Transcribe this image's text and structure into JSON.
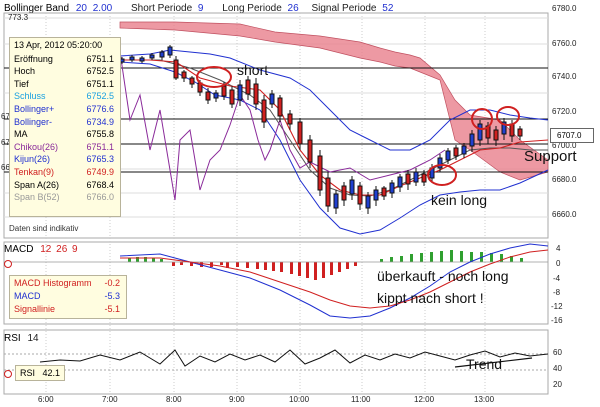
{
  "main_panel": {
    "header": {
      "bb_label": "Bollinger Band",
      "bb_period": "20",
      "bb_dev": "2.00",
      "short_label": "Short Periode",
      "short_val": "9",
      "long_label": "Long Periode",
      "long_val": "26",
      "signal_label": "Signal Periode",
      "signal_val": "52"
    },
    "y_ticks": [
      "6780.0",
      "6760.0",
      "6740.0",
      "6720.0",
      "6700.0",
      "6680.0",
      "6660.0"
    ],
    "left_ticks": [
      "773.3",
      "67",
      "67",
      "66"
    ],
    "price_badge": "6707.0",
    "footer_note": "Daten sind indikativ",
    "tooltip": {
      "datetime": "13 Apr, 2012 05:20:00",
      "rows": [
        {
          "label": "Eröffnung",
          "value": "6751.1",
          "color": "#000000"
        },
        {
          "label": "Hoch",
          "value": "6752.5",
          "color": "#000000"
        },
        {
          "label": "Tief",
          "value": "6751.1",
          "color": "#000000"
        },
        {
          "label": "Schluss",
          "value": "6752.5",
          "color": "#1aa0e0"
        },
        {
          "label": "Bollinger+",
          "value": "6776.6",
          "color": "#2030d0"
        },
        {
          "label": "Bollinger-",
          "value": "6734.9",
          "color": "#2030d0"
        },
        {
          "label": "MA",
          "value": "6755.8",
          "color": "#000000"
        },
        {
          "label": "Chikou(26)",
          "value": "6751.1",
          "color": "#8a2a9a"
        },
        {
          "label": "Kijun(26)",
          "value": "6765.3",
          "color": "#2030d0"
        },
        {
          "label": "Tenkan(9)",
          "value": "6749.9",
          "color": "#d02020"
        },
        {
          "label": "Span A(26)",
          "value": "6768.4",
          "color": "#000000"
        },
        {
          "label": "Span B(52)",
          "value": "6766.0",
          "color": "#999999"
        }
      ]
    }
  },
  "macd_panel": {
    "header": {
      "label": "MACD",
      "p1": "12",
      "p2": "26",
      "p3": "9"
    },
    "y_ticks": [
      "4",
      "0",
      "-4",
      "-8",
      "-12",
      "-16"
    ],
    "info": [
      {
        "label": "MACD Histogramm",
        "value": "-0.2",
        "color": "#d02020"
      },
      {
        "label": "MACD",
        "value": "-5.3",
        "color": "#2030d0"
      },
      {
        "label": "Signallinie",
        "value": "-5.1",
        "color": "#d02020"
      }
    ]
  },
  "rsi_panel": {
    "header": {
      "label": "RSI",
      "p1": "14"
    },
    "y_ticks": [
      "60",
      "40",
      "20"
    ],
    "info": {
      "label": "RSI",
      "value": "42.1"
    }
  },
  "x_ticks": [
    "6:00",
    "7:00",
    "8:00",
    "9:00",
    "10:00",
    "11:00",
    "12:00",
    "13:00"
  ],
  "annotations": {
    "short": "short",
    "support": "Support",
    "kein_long": "kein long",
    "ueberkauft": "überkauft - noch long",
    "kippt": "kippt nach short !",
    "trend": "Trend"
  },
  "colors": {
    "cloud": "#e8808c",
    "bollinger": "#2030d0",
    "tenkan": "#d02020",
    "chikou": "#8a2a9a",
    "macd_pos": "#30a030",
    "macd_neg": "#d02020",
    "annotation_circle": "#d02020"
  }
}
